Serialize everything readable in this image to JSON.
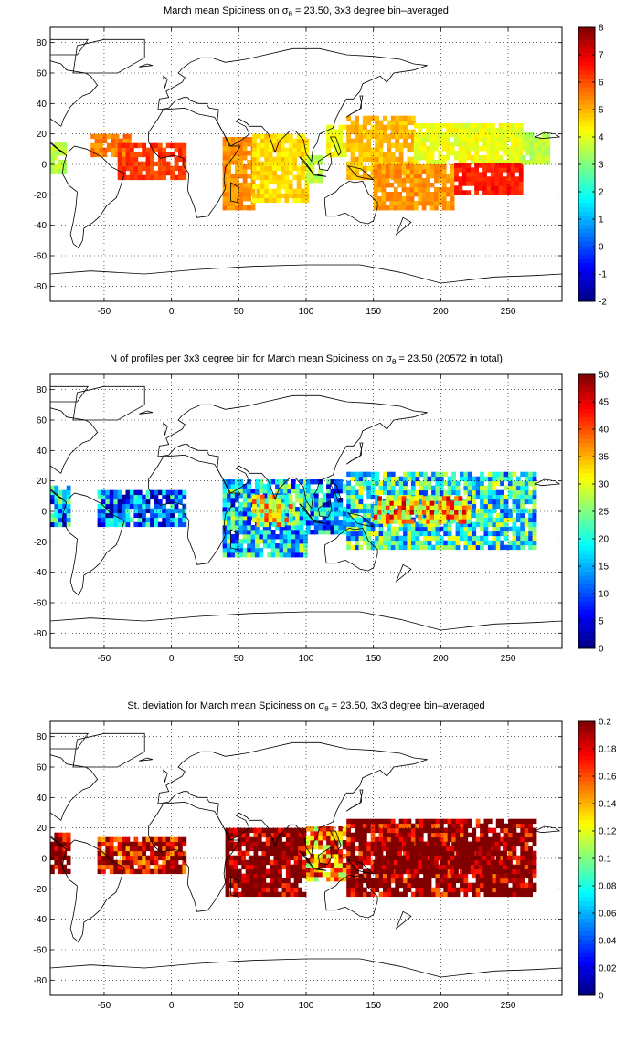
{
  "colors": {
    "frame": "#000000",
    "grid": "#000000",
    "coastline": "#000000",
    "colormap": "jet"
  },
  "chart_data": [
    {
      "type": "heatmap",
      "title_prefix": "March mean Spiciness on ",
      "title_sigma": "σ",
      "title_sub": "θ",
      "title_suffix": " = 23.50, 3x3 degree bin–averaged",
      "xlim": [
        -90,
        290
      ],
      "ylim": [
        -90,
        90
      ],
      "xticks": [
        -50,
        0,
        50,
        100,
        150,
        200,
        250
      ],
      "yticks": [
        80,
        60,
        40,
        20,
        0,
        -20,
        -40,
        -60,
        -80
      ],
      "colorbar": {
        "min": -2,
        "max": 8,
        "ticks": [
          8,
          7,
          6,
          5,
          4,
          3,
          2,
          1,
          0,
          -1,
          -2
        ]
      },
      "grid": true,
      "regions": [
        {
          "name": "",
          "x": [
            -90,
            -80
          ],
          "y": [
            -6,
            14
          ],
          "value": 3.6
        },
        {
          "name": "",
          "x": [
            -60,
            -30
          ],
          "y": [
            5,
            20
          ],
          "value": 5.5
        },
        {
          "name": "",
          "x": [
            -40,
            10
          ],
          "y": [
            -10,
            12
          ],
          "value": 6.2
        },
        {
          "name": "",
          "x": [
            38,
            60
          ],
          "y": [
            -30,
            18
          ],
          "value": 5.3
        },
        {
          "name": "",
          "x": [
            60,
            100
          ],
          "y": [
            -25,
            20
          ],
          "value": 4.6
        },
        {
          "name": "",
          "x": [
            100,
            112
          ],
          "y": [
            -12,
            4
          ],
          "value": 3.6
        },
        {
          "name": "",
          "x": [
            115,
            130
          ],
          "y": [
            5,
            25
          ],
          "value": 4.2
        },
        {
          "name": "",
          "x": [
            130,
            180
          ],
          "y": [
            -10,
            30
          ],
          "value": 4.9
        },
        {
          "name": "",
          "x": [
            180,
            260
          ],
          "y": [
            0,
            25
          ],
          "value": 4.1
        },
        {
          "name": "",
          "x": [
            150,
            210
          ],
          "y": [
            -30,
            0
          ],
          "value": 5.3
        },
        {
          "name": "",
          "x": [
            210,
            260
          ],
          "y": [
            -20,
            0
          ],
          "value": 6.5
        },
        {
          "name": "",
          "x": [
            260,
            280
          ],
          "y": [
            0,
            20
          ],
          "value": 3.6
        }
      ]
    },
    {
      "type": "heatmap",
      "title_prefix": "N of profiles per 3x3 degree bin for March mean Spiciness on ",
      "title_sigma": "σ",
      "title_sub": "θ",
      "title_suffix": " = 23.50 (20572 in total)",
      "xlim": [
        -90,
        290
      ],
      "ylim": [
        -90,
        90
      ],
      "xticks": [
        -50,
        0,
        50,
        100,
        150,
        200,
        250
      ],
      "yticks": [
        80,
        60,
        40,
        20,
        0,
        -20,
        -40,
        -60,
        -80
      ],
      "colorbar": {
        "min": 0,
        "max": 50,
        "ticks": [
          50,
          45,
          40,
          35,
          30,
          25,
          20,
          15,
          10,
          5,
          0
        ]
      },
      "grid": true,
      "regions": [
        {
          "name": "",
          "x": [
            -90,
            -75
          ],
          "y": [
            -10,
            15
          ],
          "value": 15
        },
        {
          "name": "",
          "x": [
            -55,
            10
          ],
          "y": [
            -10,
            12
          ],
          "value": 12
        },
        {
          "name": "",
          "x": [
            38,
            100
          ],
          "y": [
            -30,
            20
          ],
          "value": 18
        },
        {
          "name": "",
          "x": [
            60,
            90
          ],
          "y": [
            -10,
            10
          ],
          "value": 30
        },
        {
          "name": "",
          "x": [
            100,
            130
          ],
          "y": [
            -15,
            20
          ],
          "value": 14
        },
        {
          "name": "",
          "x": [
            130,
            270
          ],
          "y": [
            -25,
            25
          ],
          "value": 20
        },
        {
          "name": "",
          "x": [
            150,
            220
          ],
          "y": [
            -8,
            8
          ],
          "value": 35
        }
      ]
    },
    {
      "type": "heatmap",
      "title_prefix": "St. deviation for March mean Spiciness on ",
      "title_sigma": "σ",
      "title_sub": "θ",
      "title_suffix": " = 23.50, 3x3 degree bin–averaged",
      "xlim": [
        -90,
        290
      ],
      "ylim": [
        -90,
        90
      ],
      "xticks": [
        -50,
        0,
        50,
        100,
        150,
        200,
        250
      ],
      "yticks": [
        80,
        60,
        40,
        20,
        0,
        -20,
        -40,
        -60,
        -80
      ],
      "colorbar": {
        "min": 0,
        "max": 0.2,
        "ticks": [
          0.2,
          0.18,
          0.16,
          0.14,
          0.12,
          0.1,
          0.08,
          0.06,
          0.04,
          0.02,
          0
        ]
      },
      "grid": true,
      "regions": [
        {
          "name": "",
          "x": [
            -90,
            -75
          ],
          "y": [
            -10,
            15
          ],
          "value": 0.19
        },
        {
          "name": "",
          "x": [
            -55,
            10
          ],
          "y": [
            -10,
            12
          ],
          "value": 0.17
        },
        {
          "name": "",
          "x": [
            40,
            100
          ],
          "y": [
            -25,
            20
          ],
          "value": 0.19
        },
        {
          "name": "",
          "x": [
            100,
            130
          ],
          "y": [
            -15,
            20
          ],
          "value": 0.13
        },
        {
          "name": "",
          "x": [
            130,
            270
          ],
          "y": [
            -25,
            25
          ],
          "value": 0.18
        },
        {
          "name": "",
          "x": [
            150,
            250
          ],
          "y": [
            -10,
            10
          ],
          "value": 0.2
        }
      ]
    }
  ]
}
